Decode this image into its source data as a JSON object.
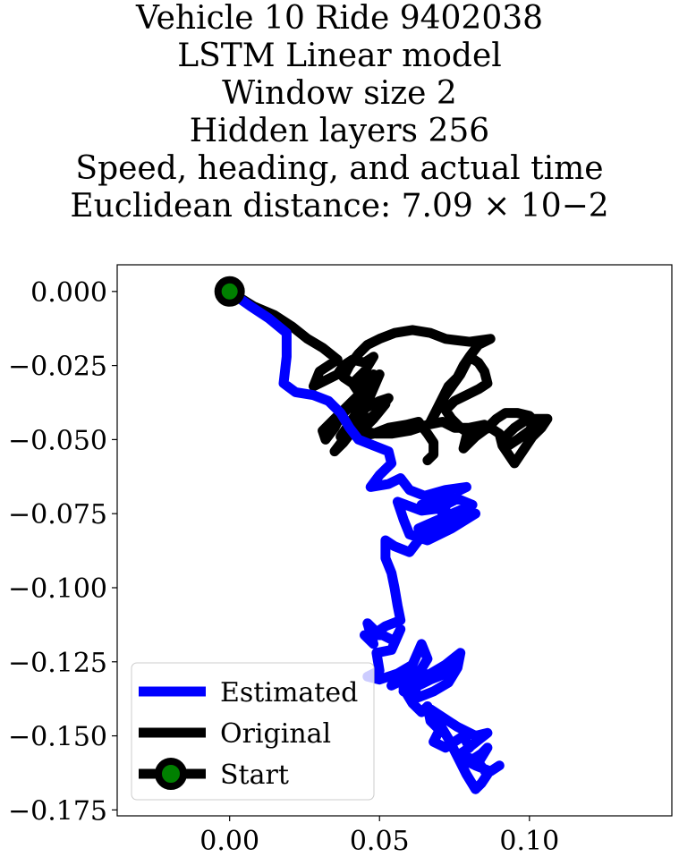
{
  "chart_data": {
    "type": "line",
    "title_lines": [
      "Vehicle 10 Ride 9402038",
      "LSTM Linear model",
      "Window size 2",
      "Hidden layers 256",
      "Speed, heading, and actual time",
      "Euclidean distance: 7.09 × 10−2"
    ],
    "xlim": [
      -0.0375,
      0.1475
    ],
    "ylim": [
      -0.177,
      0.009
    ],
    "x_ticks": [
      0.0,
      0.05,
      0.1
    ],
    "x_tick_labels": [
      "0.00",
      "0.05",
      "0.10"
    ],
    "y_ticks": [
      0.0,
      -0.025,
      -0.05,
      -0.075,
      -0.1,
      -0.125,
      -0.15,
      -0.175
    ],
    "y_tick_labels": [
      "0.000",
      "−0.025",
      "−0.050",
      "−0.075",
      "−0.100",
      "−0.125",
      "−0.150",
      "−0.175"
    ],
    "grid": false,
    "legend_position": "lower-left",
    "series": [
      {
        "name": "Estimated",
        "color": "#0000ff",
        "points": [
          [
            0.0,
            0.0
          ],
          [
            0.007,
            -0.005
          ],
          [
            0.013,
            -0.009
          ],
          [
            0.019,
            -0.014
          ],
          [
            0.019,
            -0.022
          ],
          [
            0.018,
            -0.031
          ],
          [
            0.022,
            -0.034
          ],
          [
            0.028,
            -0.035
          ],
          [
            0.033,
            -0.037
          ],
          [
            0.037,
            -0.041
          ],
          [
            0.04,
            -0.046
          ],
          [
            0.043,
            -0.05
          ],
          [
            0.048,
            -0.052
          ],
          [
            0.053,
            -0.054
          ],
          [
            0.054,
            -0.058
          ],
          [
            0.05,
            -0.062
          ],
          [
            0.047,
            -0.066
          ],
          [
            0.053,
            -0.065
          ],
          [
            0.057,
            -0.063
          ],
          [
            0.06,
            -0.067
          ],
          [
            0.065,
            -0.069
          ],
          [
            0.072,
            -0.067
          ],
          [
            0.079,
            -0.066
          ],
          [
            0.071,
            -0.07
          ],
          [
            0.064,
            -0.072
          ],
          [
            0.07,
            -0.073
          ],
          [
            0.076,
            -0.07
          ],
          [
            0.081,
            -0.072
          ],
          [
            0.072,
            -0.076
          ],
          [
            0.063,
            -0.08
          ],
          [
            0.068,
            -0.079
          ],
          [
            0.075,
            -0.077
          ],
          [
            0.082,
            -0.075
          ],
          [
            0.074,
            -0.08
          ],
          [
            0.066,
            -0.084
          ],
          [
            0.06,
            -0.082
          ],
          [
            0.058,
            -0.077
          ],
          [
            0.056,
            -0.071
          ],
          [
            0.064,
            -0.074
          ],
          [
            0.072,
            -0.073
          ],
          [
            0.07,
            -0.078
          ],
          [
            0.063,
            -0.084
          ],
          [
            0.06,
            -0.088
          ],
          [
            0.055,
            -0.086
          ],
          [
            0.052,
            -0.084
          ],
          [
            0.052,
            -0.09
          ],
          [
            0.054,
            -0.095
          ],
          [
            0.055,
            -0.1
          ],
          [
            0.056,
            -0.106
          ],
          [
            0.057,
            -0.111
          ],
          [
            0.052,
            -0.113
          ],
          [
            0.049,
            -0.115
          ],
          [
            0.046,
            -0.112
          ],
          [
            0.048,
            -0.119
          ],
          [
            0.045,
            -0.116
          ],
          [
            0.051,
            -0.116
          ],
          [
            0.055,
            -0.118
          ],
          [
            0.057,
            -0.114
          ],
          [
            0.054,
            -0.121
          ],
          [
            0.049,
            -0.122
          ],
          [
            0.05,
            -0.128
          ],
          [
            0.046,
            -0.13
          ],
          [
            0.05,
            -0.131
          ],
          [
            0.056,
            -0.129
          ],
          [
            0.061,
            -0.126
          ],
          [
            0.064,
            -0.119
          ],
          [
            0.066,
            -0.124
          ],
          [
            0.063,
            -0.129
          ],
          [
            0.058,
            -0.131
          ],
          [
            0.054,
            -0.133
          ],
          [
            0.057,
            -0.129
          ],
          [
            0.062,
            -0.128
          ],
          [
            0.068,
            -0.13
          ],
          [
            0.072,
            -0.128
          ],
          [
            0.076,
            -0.124
          ],
          [
            0.072,
            -0.129
          ],
          [
            0.067,
            -0.131
          ],
          [
            0.063,
            -0.133
          ],
          [
            0.058,
            -0.135
          ],
          [
            0.062,
            -0.131
          ],
          [
            0.067,
            -0.129
          ],
          [
            0.072,
            -0.126
          ],
          [
            0.077,
            -0.122
          ],
          [
            0.076,
            -0.127
          ],
          [
            0.073,
            -0.132
          ],
          [
            0.068,
            -0.135
          ],
          [
            0.063,
            -0.137
          ],
          [
            0.061,
            -0.133
          ],
          [
            0.058,
            -0.134
          ],
          [
            0.061,
            -0.139
          ],
          [
            0.064,
            -0.142
          ],
          [
            0.066,
            -0.14
          ],
          [
            0.067,
            -0.145
          ],
          [
            0.07,
            -0.148
          ],
          [
            0.068,
            -0.152
          ],
          [
            0.072,
            -0.154
          ],
          [
            0.075,
            -0.152
          ],
          [
            0.078,
            -0.15
          ],
          [
            0.08,
            -0.154
          ],
          [
            0.077,
            -0.156
          ],
          [
            0.081,
            -0.158
          ],
          [
            0.084,
            -0.156
          ],
          [
            0.086,
            -0.154
          ],
          [
            0.083,
            -0.159
          ],
          [
            0.086,
            -0.163
          ],
          [
            0.084,
            -0.166
          ],
          [
            0.082,
            -0.168
          ],
          [
            0.079,
            -0.163
          ],
          [
            0.076,
            -0.157
          ],
          [
            0.073,
            -0.151
          ],
          [
            0.07,
            -0.146
          ],
          [
            0.067,
            -0.141
          ],
          [
            0.076,
            -0.147
          ],
          [
            0.082,
            -0.15
          ],
          [
            0.086,
            -0.149
          ],
          [
            0.081,
            -0.153
          ],
          [
            0.076,
            -0.157
          ],
          [
            0.082,
            -0.16
          ],
          [
            0.087,
            -0.162
          ],
          [
            0.09,
            -0.16
          ]
        ]
      },
      {
        "name": "Original",
        "color": "#000000",
        "points": [
          [
            0.0,
            0.0
          ],
          [
            0.008,
            -0.005
          ],
          [
            0.015,
            -0.008
          ],
          [
            0.021,
            -0.012
          ],
          [
            0.026,
            -0.016
          ],
          [
            0.031,
            -0.019
          ],
          [
            0.036,
            -0.023
          ],
          [
            0.03,
            -0.027
          ],
          [
            0.028,
            -0.032
          ],
          [
            0.032,
            -0.03
          ],
          [
            0.036,
            -0.028
          ],
          [
            0.038,
            -0.025
          ],
          [
            0.041,
            -0.023
          ],
          [
            0.045,
            -0.024
          ],
          [
            0.048,
            -0.022
          ],
          [
            0.045,
            -0.027
          ],
          [
            0.041,
            -0.031
          ],
          [
            0.043,
            -0.034
          ],
          [
            0.046,
            -0.032
          ],
          [
            0.048,
            -0.029
          ],
          [
            0.044,
            -0.035
          ],
          [
            0.04,
            -0.039
          ],
          [
            0.037,
            -0.042
          ],
          [
            0.035,
            -0.046
          ],
          [
            0.032,
            -0.05
          ],
          [
            0.031,
            -0.047
          ],
          [
            0.035,
            -0.043
          ],
          [
            0.04,
            -0.038
          ],
          [
            0.044,
            -0.034
          ],
          [
            0.047,
            -0.031
          ],
          [
            0.05,
            -0.028
          ],
          [
            0.047,
            -0.035
          ],
          [
            0.044,
            -0.042
          ],
          [
            0.041,
            -0.047
          ],
          [
            0.038,
            -0.051
          ],
          [
            0.035,
            -0.054
          ],
          [
            0.038,
            -0.05
          ],
          [
            0.041,
            -0.044
          ],
          [
            0.044,
            -0.038
          ],
          [
            0.046,
            -0.034
          ],
          [
            0.043,
            -0.04
          ],
          [
            0.039,
            -0.046
          ],
          [
            0.037,
            -0.049
          ],
          [
            0.041,
            -0.048
          ],
          [
            0.045,
            -0.045
          ],
          [
            0.049,
            -0.041
          ],
          [
            0.052,
            -0.038
          ],
          [
            0.048,
            -0.043
          ],
          [
            0.044,
            -0.047
          ],
          [
            0.049,
            -0.048
          ],
          [
            0.054,
            -0.048
          ],
          [
            0.06,
            -0.047
          ],
          [
            0.066,
            -0.045
          ],
          [
            0.071,
            -0.044
          ],
          [
            0.075,
            -0.046
          ],
          [
            0.08,
            -0.046
          ],
          [
            0.085,
            -0.045
          ],
          [
            0.082,
            -0.048
          ],
          [
            0.079,
            -0.049
          ],
          [
            0.078,
            -0.053
          ],
          [
            0.082,
            -0.049
          ],
          [
            0.086,
            -0.046
          ],
          [
            0.089,
            -0.043
          ],
          [
            0.092,
            -0.041
          ],
          [
            0.096,
            -0.041
          ],
          [
            0.1,
            -0.042
          ],
          [
            0.102,
            -0.044
          ],
          [
            0.1,
            -0.047
          ],
          [
            0.096,
            -0.05
          ],
          [
            0.093,
            -0.052
          ],
          [
            0.092,
            -0.049
          ],
          [
            0.095,
            -0.046
          ],
          [
            0.098,
            -0.044
          ],
          [
            0.102,
            -0.043
          ],
          [
            0.106,
            -0.043
          ],
          [
            0.104,
            -0.046
          ],
          [
            0.101,
            -0.049
          ],
          [
            0.099,
            -0.052
          ],
          [
            0.097,
            -0.055
          ],
          [
            0.095,
            -0.058
          ],
          [
            0.093,
            -0.055
          ],
          [
            0.091,
            -0.052
          ],
          [
            0.09,
            -0.048
          ],
          [
            0.087,
            -0.046
          ],
          [
            0.083,
            -0.047
          ],
          [
            0.08,
            -0.048
          ],
          [
            0.077,
            -0.046
          ],
          [
            0.074,
            -0.043
          ],
          [
            0.072,
            -0.04
          ],
          [
            0.075,
            -0.037
          ],
          [
            0.079,
            -0.035
          ],
          [
            0.083,
            -0.033
          ],
          [
            0.086,
            -0.031
          ],
          [
            0.085,
            -0.027
          ],
          [
            0.083,
            -0.024
          ],
          [
            0.08,
            -0.022
          ],
          [
            0.078,
            -0.025
          ],
          [
            0.076,
            -0.029
          ],
          [
            0.073,
            -0.032
          ],
          [
            0.071,
            -0.036
          ],
          [
            0.069,
            -0.04
          ],
          [
            0.067,
            -0.044
          ],
          [
            0.072,
            -0.035
          ],
          [
            0.077,
            -0.028
          ],
          [
            0.08,
            -0.022
          ],
          [
            0.083,
            -0.018
          ],
          [
            0.087,
            -0.016
          ],
          [
            0.08,
            -0.017
          ],
          [
            0.072,
            -0.016
          ],
          [
            0.067,
            -0.014
          ],
          [
            0.061,
            -0.013
          ],
          [
            0.055,
            -0.014
          ],
          [
            0.05,
            -0.016
          ],
          [
            0.046,
            -0.018
          ],
          [
            0.043,
            -0.021
          ],
          [
            0.04,
            -0.025
          ],
          [
            0.038,
            -0.029
          ],
          [
            0.041,
            -0.031
          ],
          [
            0.044,
            -0.03
          ],
          [
            0.048,
            -0.028
          ],
          [
            0.044,
            -0.034
          ],
          [
            0.041,
            -0.038
          ],
          [
            0.046,
            -0.039
          ],
          [
            0.05,
            -0.037
          ],
          [
            0.053,
            -0.036
          ],
          [
            0.049,
            -0.041
          ],
          [
            0.044,
            -0.045
          ],
          [
            0.041,
            -0.044
          ],
          [
            0.043,
            -0.049
          ],
          [
            0.048,
            -0.048
          ],
          [
            0.053,
            -0.046
          ],
          [
            0.059,
            -0.045
          ],
          [
            0.063,
            -0.044
          ],
          [
            0.066,
            -0.048
          ],
          [
            0.068,
            -0.051
          ],
          [
            0.068,
            -0.055
          ],
          [
            0.066,
            -0.057
          ]
        ]
      }
    ],
    "start_point": {
      "name": "Start",
      "x": 0.0,
      "y": 0.0,
      "marker_fill": "#008000",
      "marker_edge": "#000000"
    }
  }
}
